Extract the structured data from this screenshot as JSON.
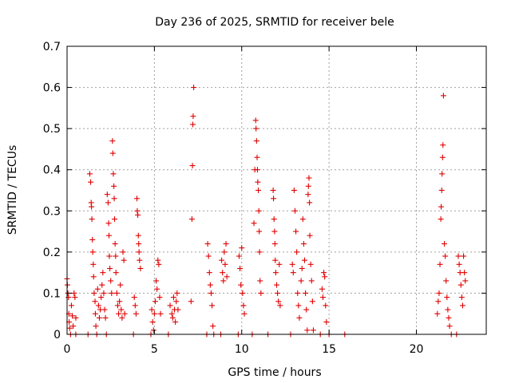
{
  "chart_data": {
    "type": "scatter",
    "title": "Day 236 of 2025, SRMTID for receiver bele",
    "xlabel": "GPS time / hours",
    "ylabel": "SRMTID / TECUs",
    "xlim": [
      0,
      24
    ],
    "ylim": [
      0,
      0.7
    ],
    "xticks": [
      0,
      5,
      10,
      15,
      20
    ],
    "yticks": [
      0,
      0.1,
      0.2,
      0.3,
      0.4,
      0.5,
      0.6,
      0.7
    ],
    "xtick_labels": [
      "0",
      "5",
      "10",
      "15",
      "20"
    ],
    "ytick_labels": [
      "0",
      "0.1",
      "0.2",
      "0.3",
      "0.4",
      "0.5",
      "0.6",
      "0.7"
    ],
    "grid": true,
    "marker": "+",
    "color": "#e00000",
    "series": [
      {
        "name": "SRMTID",
        "points": [
          [
            0.0,
            0.135
          ],
          [
            0.02,
            0.12
          ],
          [
            0.05,
            0.1
          ],
          [
            0.08,
            0.09
          ],
          [
            0.1,
            0.05
          ],
          [
            0.12,
            0.03
          ],
          [
            0.15,
            0.015
          ],
          [
            0.2,
            0.0
          ],
          [
            0.25,
            0.07
          ],
          [
            0.3,
            0.045
          ],
          [
            0.35,
            0.02
          ],
          [
            0.4,
            0.1
          ],
          [
            0.45,
            0.09
          ],
          [
            0.5,
            0.04
          ],
          [
            0.5,
            0.0
          ],
          [
            1.2,
            0.0
          ],
          [
            1.3,
            0.39
          ],
          [
            1.35,
            0.37
          ],
          [
            1.38,
            0.32
          ],
          [
            1.4,
            0.31
          ],
          [
            1.42,
            0.28
          ],
          [
            1.45,
            0.23
          ],
          [
            1.47,
            0.2
          ],
          [
            1.5,
            0.17
          ],
          [
            1.52,
            0.14
          ],
          [
            1.55,
            0.1
          ],
          [
            1.6,
            0.08
          ],
          [
            1.62,
            0.05
          ],
          [
            1.65,
            0.02
          ],
          [
            1.7,
            0.0
          ],
          [
            1.75,
            0.11
          ],
          [
            1.8,
            0.07
          ],
          [
            1.85,
            0.04
          ],
          [
            1.9,
            0.06
          ],
          [
            1.95,
            0.09
          ],
          [
            2.0,
            0.12
          ],
          [
            2.05,
            0.15
          ],
          [
            2.1,
            0.1
          ],
          [
            2.15,
            0.06
          ],
          [
            2.2,
            0.04
          ],
          [
            2.25,
            0.0
          ],
          [
            2.3,
            0.34
          ],
          [
            2.35,
            0.32
          ],
          [
            2.38,
            0.27
          ],
          [
            2.4,
            0.24
          ],
          [
            2.42,
            0.19
          ],
          [
            2.45,
            0.16
          ],
          [
            2.5,
            0.13
          ],
          [
            2.55,
            0.1
          ],
          [
            2.6,
            0.47
          ],
          [
            2.62,
            0.44
          ],
          [
            2.65,
            0.39
          ],
          [
            2.68,
            0.36
          ],
          [
            2.7,
            0.33
          ],
          [
            2.72,
            0.28
          ],
          [
            2.75,
            0.22
          ],
          [
            2.78,
            0.19
          ],
          [
            2.8,
            0.15
          ],
          [
            2.85,
            0.1
          ],
          [
            2.9,
            0.07
          ],
          [
            2.95,
            0.05
          ],
          [
            3.0,
            0.08
          ],
          [
            3.05,
            0.12
          ],
          [
            3.1,
            0.06
          ],
          [
            3.15,
            0.04
          ],
          [
            3.2,
            0.2
          ],
          [
            3.25,
            0.18
          ],
          [
            3.3,
            0.05
          ],
          [
            3.8,
            0.0
          ],
          [
            3.85,
            0.09
          ],
          [
            3.9,
            0.07
          ],
          [
            3.95,
            0.05
          ],
          [
            4.0,
            0.33
          ],
          [
            4.02,
            0.3
          ],
          [
            4.05,
            0.29
          ],
          [
            4.08,
            0.24
          ],
          [
            4.1,
            0.22
          ],
          [
            4.12,
            0.2
          ],
          [
            4.15,
            0.18
          ],
          [
            4.2,
            0.16
          ],
          [
            4.8,
            0.0
          ],
          [
            4.85,
            0.06
          ],
          [
            4.9,
            0.03
          ],
          [
            4.95,
            0.01
          ],
          [
            5.0,
            0.05
          ],
          [
            5.05,
            0.08
          ],
          [
            5.1,
            0.13
          ],
          [
            5.15,
            0.11
          ],
          [
            5.2,
            0.18
          ],
          [
            5.25,
            0.17
          ],
          [
            5.3,
            0.09
          ],
          [
            5.35,
            0.05
          ],
          [
            5.8,
            0.0
          ],
          [
            5.9,
            0.07
          ],
          [
            6.0,
            0.05
          ],
          [
            6.05,
            0.04
          ],
          [
            6.1,
            0.09
          ],
          [
            6.15,
            0.06
          ],
          [
            6.2,
            0.03
          ],
          [
            6.25,
            0.08
          ],
          [
            6.3,
            0.1
          ],
          [
            6.35,
            0.06
          ],
          [
            7.1,
            0.08
          ],
          [
            7.15,
            0.28
          ],
          [
            7.18,
            0.41
          ],
          [
            7.2,
            0.51
          ],
          [
            7.22,
            0.53
          ],
          [
            7.25,
            0.6
          ],
          [
            8.0,
            0.0
          ],
          [
            8.05,
            0.22
          ],
          [
            8.1,
            0.19
          ],
          [
            8.15,
            0.15
          ],
          [
            8.2,
            0.12
          ],
          [
            8.25,
            0.1
          ],
          [
            8.3,
            0.07
          ],
          [
            8.35,
            0.02
          ],
          [
            8.4,
            0.0
          ],
          [
            8.8,
            0.0
          ],
          [
            8.85,
            0.18
          ],
          [
            8.9,
            0.15
          ],
          [
            8.95,
            0.13
          ],
          [
            9.0,
            0.2
          ],
          [
            9.05,
            0.17
          ],
          [
            9.1,
            0.22
          ],
          [
            9.15,
            0.14
          ],
          [
            9.8,
            0.0
          ],
          [
            9.85,
            0.19
          ],
          [
            9.9,
            0.16
          ],
          [
            9.95,
            0.12
          ],
          [
            10.0,
            0.21
          ],
          [
            10.05,
            0.1
          ],
          [
            10.1,
            0.07
          ],
          [
            10.15,
            0.05
          ],
          [
            10.6,
            0.0
          ],
          [
            10.7,
            0.27
          ],
          [
            10.75,
            0.4
          ],
          [
            10.8,
            0.52
          ],
          [
            10.82,
            0.5
          ],
          [
            10.85,
            0.47
          ],
          [
            10.88,
            0.43
          ],
          [
            10.9,
            0.4
          ],
          [
            10.92,
            0.37
          ],
          [
            10.95,
            0.35
          ],
          [
            10.98,
            0.3
          ],
          [
            11.0,
            0.25
          ],
          [
            11.02,
            0.2
          ],
          [
            11.05,
            0.13
          ],
          [
            11.1,
            0.1
          ],
          [
            11.5,
            0.0
          ],
          [
            11.8,
            0.35
          ],
          [
            11.82,
            0.33
          ],
          [
            11.85,
            0.28
          ],
          [
            11.88,
            0.25
          ],
          [
            11.9,
            0.22
          ],
          [
            11.92,
            0.18
          ],
          [
            11.95,
            0.15
          ],
          [
            12.0,
            0.12
          ],
          [
            12.05,
            0.1
          ],
          [
            12.1,
            0.08
          ],
          [
            12.15,
            0.17
          ],
          [
            12.2,
            0.07
          ],
          [
            12.8,
            0.0
          ],
          [
            12.9,
            0.17
          ],
          [
            12.95,
            0.15
          ],
          [
            13.0,
            0.35
          ],
          [
            13.05,
            0.3
          ],
          [
            13.1,
            0.25
          ],
          [
            13.15,
            0.2
          ],
          [
            13.2,
            0.1
          ],
          [
            13.25,
            0.07
          ],
          [
            13.3,
            0.04
          ],
          [
            13.4,
            0.13
          ],
          [
            13.45,
            0.16
          ],
          [
            13.5,
            0.28
          ],
          [
            13.55,
            0.22
          ],
          [
            13.6,
            0.18
          ],
          [
            13.65,
            0.1
          ],
          [
            13.7,
            0.06
          ],
          [
            13.75,
            0.01
          ],
          [
            13.8,
            0.34
          ],
          [
            13.82,
            0.36
          ],
          [
            13.85,
            0.38
          ],
          [
            13.88,
            0.32
          ],
          [
            13.9,
            0.24
          ],
          [
            13.95,
            0.17
          ],
          [
            14.0,
            0.13
          ],
          [
            14.05,
            0.08
          ],
          [
            14.1,
            0.01
          ],
          [
            14.5,
            0.0
          ],
          [
            14.6,
            0.11
          ],
          [
            14.65,
            0.09
          ],
          [
            14.7,
            0.15
          ],
          [
            14.75,
            0.14
          ],
          [
            14.8,
            0.07
          ],
          [
            14.85,
            0.03
          ],
          [
            15.0,
            0.0
          ],
          [
            15.9,
            0.0
          ],
          [
            21.2,
            0.05
          ],
          [
            21.25,
            0.08
          ],
          [
            21.3,
            0.1
          ],
          [
            21.35,
            0.17
          ],
          [
            21.4,
            0.28
          ],
          [
            21.42,
            0.31
          ],
          [
            21.45,
            0.35
          ],
          [
            21.47,
            0.39
          ],
          [
            21.5,
            0.43
          ],
          [
            21.52,
            0.46
          ],
          [
            21.55,
            0.58
          ],
          [
            21.6,
            0.22
          ],
          [
            21.65,
            0.19
          ],
          [
            21.7,
            0.13
          ],
          [
            21.75,
            0.09
          ],
          [
            21.8,
            0.06
          ],
          [
            21.85,
            0.04
          ],
          [
            21.9,
            0.02
          ],
          [
            22.0,
            0.0
          ],
          [
            22.3,
            0.0
          ],
          [
            22.4,
            0.19
          ],
          [
            22.45,
            0.17
          ],
          [
            22.5,
            0.15
          ],
          [
            22.55,
            0.12
          ],
          [
            22.6,
            0.09
          ],
          [
            22.65,
            0.07
          ],
          [
            22.7,
            0.19
          ],
          [
            22.75,
            0.15
          ],
          [
            22.8,
            0.13
          ]
        ]
      }
    ]
  }
}
